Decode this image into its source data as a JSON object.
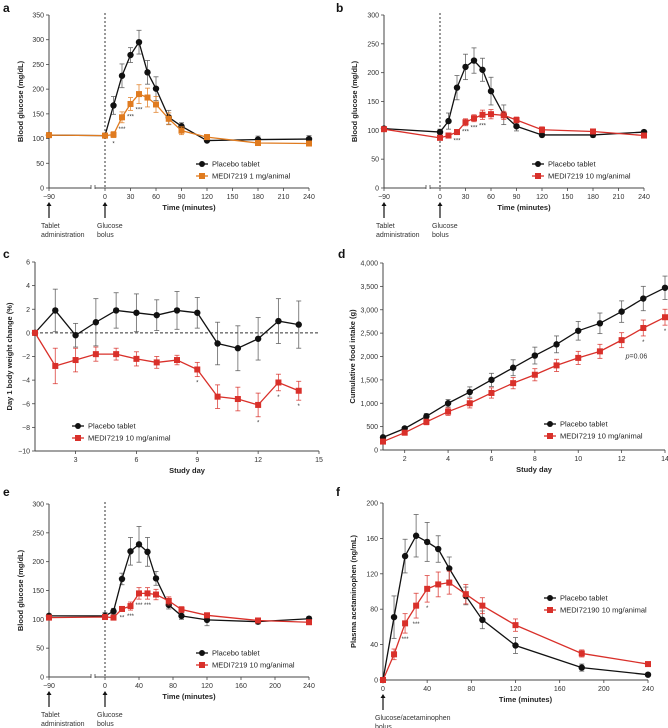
{
  "chart_data": [
    {
      "panel": "a",
      "type": "line",
      "title": "",
      "xlabel": "Time (minutes)",
      "ylabel": "Blood glucose (mg/dL)",
      "ylim": [
        0,
        350
      ],
      "yticks": [
        0,
        50,
        100,
        150,
        200,
        250,
        300,
        350
      ],
      "xticks": [
        -90,
        0,
        30,
        60,
        90,
        120,
        150,
        180,
        210,
        240
      ],
      "xtick_labels": [
        "−90",
        "0",
        "30",
        "60",
        "90",
        "120",
        "150",
        "180",
        "210",
        "240"
      ],
      "axis_break": true,
      "event_lines": [
        {
          "x": 0,
          "style": "dashed"
        }
      ],
      "annotations": [
        {
          "x": -90,
          "text": "Tablet administration",
          "arrow": true
        },
        {
          "x": 0,
          "text": "Glucose bolus",
          "arrow": true
        }
      ],
      "legend_position": "bottom-right",
      "series": [
        {
          "name": "Placebo tablet",
          "color": "#111111",
          "marker": "circle",
          "x": [
            -90,
            0,
            10,
            20,
            30,
            40,
            50,
            60,
            75,
            90,
            120,
            180,
            240
          ],
          "y": [
            107,
            106,
            167,
            227,
            269,
            295,
            234,
            201,
            143,
            125,
            96,
            98,
            99
          ],
          "err": [
            3,
            4,
            18,
            24,
            15,
            24,
            24,
            24,
            14,
            7,
            3,
            7,
            7
          ]
        },
        {
          "name": "MEDI7219 1 mg/animal",
          "color": "#e07b1f",
          "marker": "square",
          "x": [
            -90,
            0,
            10,
            20,
            30,
            40,
            50,
            60,
            75,
            90,
            120,
            180,
            240
          ],
          "y": [
            107,
            106,
            108,
            143,
            170,
            190,
            183,
            169,
            140,
            116,
            103,
            91,
            90
          ],
          "err": [
            3,
            4,
            6,
            11,
            13,
            19,
            19,
            16,
            12,
            8,
            5,
            5,
            4
          ]
        }
      ],
      "significance": [
        {
          "x": 10,
          "text": "*"
        },
        {
          "x": 20,
          "text": "***"
        },
        {
          "x": 30,
          "text": "***"
        },
        {
          "x": 40,
          "text": "***"
        }
      ]
    },
    {
      "panel": "b",
      "type": "line",
      "xlabel": "Time (minutes)",
      "ylabel": "Blood glucose (mg/dL)",
      "ylim": [
        0,
        300
      ],
      "yticks": [
        0,
        50,
        100,
        150,
        200,
        250,
        300
      ],
      "xticks": [
        -90,
        0,
        30,
        60,
        90,
        120,
        150,
        180,
        210,
        240
      ],
      "xtick_labels": [
        "−90",
        "0",
        "30",
        "60",
        "90",
        "120",
        "150",
        "180",
        "210",
        "240"
      ],
      "axis_break": true,
      "event_lines": [
        {
          "x": 0,
          "style": "dashed"
        }
      ],
      "annotations": [
        {
          "x": -90,
          "text": "Tablet administration",
          "arrow": true
        },
        {
          "x": 0,
          "text": "Glucose bolus",
          "arrow": true
        }
      ],
      "legend_position": "bottom-right",
      "series": [
        {
          "name": "Placebo tablet",
          "color": "#111111",
          "marker": "circle",
          "x": [
            -90,
            0,
            10,
            20,
            30,
            40,
            50,
            60,
            75,
            90,
            120,
            180,
            240
          ],
          "y": [
            103,
            97,
            116,
            174,
            210,
            221,
            205,
            168,
            127,
            107,
            92,
            92,
            97
          ],
          "err": [
            2,
            5,
            14,
            21,
            22,
            22,
            20,
            24,
            17,
            8,
            3,
            4,
            3
          ]
        },
        {
          "name": "MEDI7219 10 mg/animal",
          "color": "#d9302a",
          "marker": "square",
          "x": [
            -90,
            0,
            10,
            20,
            30,
            40,
            50,
            60,
            75,
            90,
            120,
            180,
            240
          ],
          "y": [
            102,
            87,
            91,
            97,
            114,
            121,
            127,
            128,
            126,
            118,
            101,
            98,
            91
          ],
          "err": [
            2,
            4,
            3,
            4,
            6,
            6,
            8,
            8,
            7,
            5,
            5,
            4,
            3
          ]
        }
      ],
      "significance": [
        {
          "x": 20,
          "text": "***"
        },
        {
          "x": 30,
          "text": "***"
        },
        {
          "x": 40,
          "text": "***"
        },
        {
          "x": 50,
          "text": "***"
        }
      ]
    },
    {
      "panel": "c",
      "type": "line",
      "xlabel": "Study day",
      "ylabel": "Day 1 body weight change (%)",
      "xlim": [
        1,
        15
      ],
      "ylim": [
        -10,
        6
      ],
      "yticks": [
        -10,
        -8,
        -6,
        -4,
        -2,
        0,
        2,
        4,
        6
      ],
      "ytick_labels": [
        "−10",
        "−8",
        "−6",
        "−4",
        "−2",
        "0",
        "2",
        "4",
        "6"
      ],
      "xticks": [
        3,
        6,
        9,
        12,
        15
      ],
      "reference_line": {
        "y": 0,
        "style": "dashed"
      },
      "legend_position": "bottom-left",
      "series": [
        {
          "name": "Placebo tablet",
          "color": "#111111",
          "marker": "circle",
          "x": [
            1,
            2,
            3,
            4,
            5,
            6,
            7,
            8,
            9,
            10,
            11,
            12,
            13,
            14
          ],
          "y": [
            0,
            1.9,
            -0.2,
            0.9,
            1.9,
            1.7,
            1.5,
            1.9,
            1.7,
            -0.9,
            -1.3,
            -0.5,
            1.0,
            0.7
          ],
          "err": [
            0,
            1.8,
            1.0,
            2.0,
            1.5,
            1.6,
            1.3,
            1.6,
            1.3,
            1.8,
            1.9,
            1.8,
            1.9,
            2.0
          ]
        },
        {
          "name": "MEDI7219 10 mg/animal",
          "color": "#d9302a",
          "marker": "square",
          "x": [
            1,
            2,
            3,
            4,
            5,
            6,
            7,
            8,
            9,
            10,
            11,
            12,
            13,
            14
          ],
          "y": [
            0,
            -2.8,
            -2.3,
            -1.8,
            -1.8,
            -2.2,
            -2.5,
            -2.3,
            -3.1,
            -5.4,
            -5.6,
            -6.1,
            -4.2,
            -4.9
          ],
          "err": [
            0,
            1.5,
            1.0,
            0.6,
            0.5,
            0.6,
            0.5,
            0.4,
            0.6,
            1.0,
            1.0,
            1.0,
            0.7,
            0.8
          ]
        }
      ],
      "significance": [
        {
          "x": 9,
          "text": "*"
        },
        {
          "x": 12,
          "text": "*"
        },
        {
          "x": 13,
          "text": "*"
        },
        {
          "x": 14,
          "text": "*"
        }
      ]
    },
    {
      "panel": "d",
      "type": "line",
      "xlabel": "Study day",
      "ylabel": "Cumulative food intake (g)",
      "xlim": [
        1,
        14
      ],
      "ylim": [
        0,
        4000
      ],
      "yticks": [
        0,
        500,
        1000,
        1500,
        2000,
        2500,
        3000,
        3500,
        4000
      ],
      "ytick_labels": [
        "0",
        "500",
        "1,000",
        "1,500",
        "2,000",
        "2,500",
        "3,000",
        "3,500",
        "4,000"
      ],
      "xticks": [
        2,
        4,
        6,
        8,
        10,
        12,
        14
      ],
      "legend_position": "bottom-right",
      "series": [
        {
          "name": "Placebo tablet",
          "color": "#111111",
          "marker": "circle",
          "x": [
            1,
            2,
            3,
            4,
            5,
            6,
            7,
            8,
            9,
            10,
            11,
            12,
            13,
            14
          ],
          "y": [
            270,
            460,
            720,
            1000,
            1240,
            1500,
            1760,
            2020,
            2260,
            2550,
            2710,
            2960,
            3240,
            3470
          ],
          "err": [
            30,
            40,
            60,
            80,
            110,
            140,
            170,
            180,
            180,
            200,
            220,
            230,
            260,
            250
          ]
        },
        {
          "name": "MEDI7219 10 mg/animal",
          "color": "#d9302a",
          "marker": "square",
          "x": [
            1,
            2,
            3,
            4,
            5,
            6,
            7,
            8,
            9,
            10,
            11,
            12,
            13,
            14
          ],
          "y": [
            180,
            370,
            600,
            820,
            1000,
            1220,
            1430,
            1610,
            1810,
            1970,
            2110,
            2350,
            2610,
            2840
          ],
          "err": [
            40,
            50,
            60,
            80,
            100,
            110,
            120,
            130,
            130,
            140,
            150,
            160,
            170,
            170
          ]
        }
      ],
      "significance": [
        {
          "x": 12,
          "text": "p=0.06",
          "italic_p": true
        },
        {
          "x": 13,
          "text": "*"
        },
        {
          "x": 14,
          "text": "*"
        }
      ]
    },
    {
      "panel": "e",
      "type": "line",
      "xlabel": "Time (minutes)",
      "ylabel": "Blood glucose (mg/dL)",
      "ylim": [
        0,
        300
      ],
      "yticks": [
        0,
        50,
        100,
        150,
        200,
        250,
        300
      ],
      "xticks": [
        -90,
        0,
        40,
        80,
        120,
        160,
        200,
        240
      ],
      "xtick_labels": [
        "−90",
        "0",
        "40",
        "80",
        "120",
        "160",
        "200",
        "240"
      ],
      "axis_break": true,
      "event_lines": [
        {
          "x": 0,
          "style": "dashed"
        }
      ],
      "annotations": [
        {
          "x": -90,
          "text": "Tablet administration",
          "arrow": true
        },
        {
          "x": 0,
          "text": "Glucose bolus",
          "arrow": true
        }
      ],
      "legend_position": "bottom-right",
      "series": [
        {
          "name": "Placebo tablet",
          "color": "#111111",
          "marker": "circle",
          "x": [
            -90,
            0,
            10,
            20,
            30,
            40,
            50,
            60,
            75,
            90,
            120,
            180,
            240
          ],
          "y": [
            106,
            106,
            114,
            170,
            218,
            230,
            217,
            171,
            125,
            106,
            99,
            96,
            101
          ],
          "err": [
            3,
            6,
            5,
            10,
            24,
            31,
            25,
            12,
            7,
            6,
            10,
            4,
            4
          ]
        },
        {
          "name": "MEDI7219 10 mg/animal",
          "color": "#d9302a",
          "marker": "square",
          "x": [
            -90,
            0,
            10,
            20,
            30,
            40,
            50,
            60,
            75,
            90,
            120,
            180,
            240
          ],
          "y": [
            103,
            104,
            103,
            118,
            123,
            145,
            145,
            143,
            132,
            117,
            107,
            98,
            95
          ],
          "err": [
            3,
            4,
            3,
            4,
            7,
            10,
            10,
            9,
            7,
            5,
            4,
            3,
            3
          ]
        }
      ],
      "significance": [
        {
          "x": 20,
          "text": "**"
        },
        {
          "x": 30,
          "text": "***"
        },
        {
          "x": 40,
          "text": "***"
        },
        {
          "x": 50,
          "text": "***"
        }
      ]
    },
    {
      "panel": "f",
      "type": "line",
      "xlabel": "Time (minutes)",
      "ylabel": "Plasma acetaminophen (ng/mL)",
      "xlim": [
        0,
        240
      ],
      "ylim": [
        0,
        200
      ],
      "yticks": [
        0,
        40,
        80,
        120,
        160,
        200
      ],
      "xticks": [
        0,
        40,
        80,
        120,
        160,
        200,
        240
      ],
      "annotations": [
        {
          "x": 0,
          "text": "Glucose/acetaminophen bolus",
          "arrow": true
        }
      ],
      "legend_position": "center-right",
      "series": [
        {
          "name": "Placebo tablet",
          "color": "#111111",
          "marker": "circle",
          "x": [
            0,
            10,
            20,
            30,
            40,
            50,
            60,
            75,
            90,
            120,
            180,
            240
          ],
          "y": [
            0,
            71,
            140,
            163,
            156,
            148,
            126,
            95,
            68,
            39,
            14,
            6
          ],
          "err": [
            0,
            24,
            19,
            24,
            22,
            15,
            13,
            10,
            10,
            9,
            4,
            2
          ]
        },
        {
          "name": "MEDI72190 10 mg/animal",
          "color": "#d9302a",
          "marker": "square",
          "x": [
            0,
            10,
            20,
            30,
            40,
            50,
            60,
            75,
            90,
            120,
            180,
            240
          ],
          "y": [
            0,
            29,
            64,
            84,
            103,
            108,
            110,
            97,
            84,
            62,
            30,
            18
          ],
          "err": [
            0,
            6,
            11,
            14,
            15,
            14,
            13,
            11,
            9,
            7,
            4,
            2
          ]
        }
      ],
      "significance": [
        {
          "x": 20,
          "text": "***"
        },
        {
          "x": 30,
          "text": "***"
        },
        {
          "x": 40,
          "text": "*"
        }
      ]
    }
  ]
}
